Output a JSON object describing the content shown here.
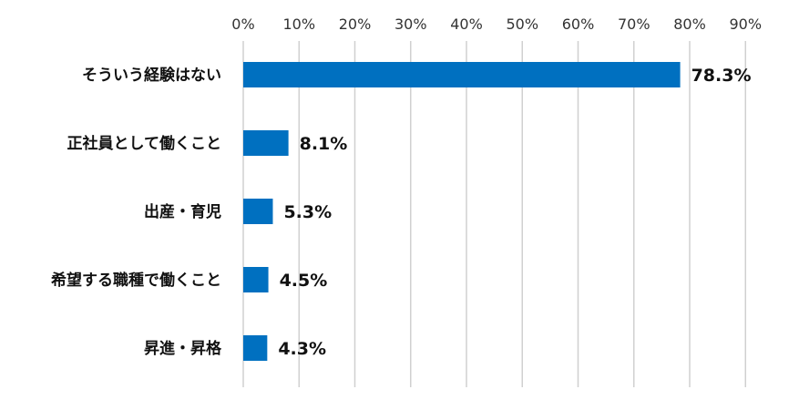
{
  "chart_data": {
    "type": "bar",
    "orientation": "horizontal",
    "categories": [
      "そういう経験はない",
      "正社員として働くこと",
      "出産・育児",
      "希望する職種で働くこと",
      "昇進・昇格"
    ],
    "values": [
      78.3,
      8.1,
      5.3,
      4.5,
      4.3
    ],
    "value_labels": [
      "78.3%",
      "8.1%",
      "5.3%",
      "4.5%",
      "4.3%"
    ],
    "x_ticks": [
      "0%",
      "10%",
      "20%",
      "30%",
      "40%",
      "50%",
      "60%",
      "70%",
      "80%",
      "90%"
    ],
    "xlim": [
      0,
      90
    ],
    "x_axis_position": "top",
    "grid": true,
    "bar_color": "#0070C0",
    "grid_color": "#D0D0D0"
  }
}
